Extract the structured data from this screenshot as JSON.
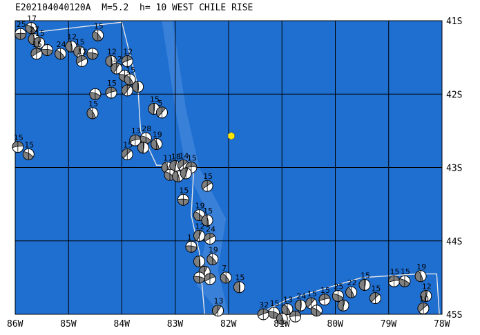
{
  "title": "E202104040120A  M=5.2  h= 10 WEST CHILE RISE",
  "map": {
    "ocean_color": "#1f6fd1",
    "ridge_color": "#4f8ee0",
    "grid_color": "#000000",
    "boundary_color": "#e6e6e6",
    "epicenter_color": "#ffe800",
    "lon_range": [
      -86,
      -78
    ],
    "lat_range": [
      -45,
      -41
    ],
    "lon_labels": [
      "86W",
      "85W",
      "84W",
      "83W",
      "82W",
      "81W",
      "80W",
      "79W",
      "78W"
    ],
    "lat_labels": [
      "41S",
      "42S",
      "43S",
      "44S",
      "45S"
    ],
    "epicenter": {
      "lon": -81.95,
      "lat": -42.57
    },
    "mechanisms": [
      {
        "lon": -85.9,
        "lat": -41.18,
        "label": "25"
      },
      {
        "lon": -85.7,
        "lat": -41.1,
        "label": "17"
      },
      {
        "lon": -85.65,
        "lat": -41.25,
        "label": "27"
      },
      {
        "lon": -85.55,
        "lat": -41.3,
        "label": "15"
      },
      {
        "lon": -85.6,
        "lat": -41.45,
        "label": "15"
      },
      {
        "lon": -85.4,
        "lat": -41.4,
        "label": ""
      },
      {
        "lon": -85.15,
        "lat": -41.45,
        "label": "24"
      },
      {
        "lon": -84.95,
        "lat": -41.35,
        "label": "12"
      },
      {
        "lon": -84.8,
        "lat": -41.42,
        "label": "15"
      },
      {
        "lon": -84.75,
        "lat": -41.55,
        "label": "12"
      },
      {
        "lon": -84.55,
        "lat": -41.45,
        "label": ""
      },
      {
        "lon": -84.45,
        "lat": -41.2,
        "label": "15"
      },
      {
        "lon": -84.2,
        "lat": -41.55,
        "label": "12"
      },
      {
        "lon": -84.1,
        "lat": -41.65,
        "label": "12"
      },
      {
        "lon": -83.9,
        "lat": -41.55,
        "label": "12"
      },
      {
        "lon": -83.95,
        "lat": -41.75,
        "label": ""
      },
      {
        "lon": -83.85,
        "lat": -41.8,
        "label": "15"
      },
      {
        "lon": -83.7,
        "lat": -41.9,
        "label": ""
      },
      {
        "lon": -83.9,
        "lat": -41.95,
        "label": ""
      },
      {
        "lon": -84.2,
        "lat": -41.98,
        "label": "15"
      },
      {
        "lon": -84.5,
        "lat": -42.0,
        "label": ""
      },
      {
        "lon": -84.55,
        "lat": -42.26,
        "label": "15"
      },
      {
        "lon": -83.4,
        "lat": -42.2,
        "label": "15"
      },
      {
        "lon": -83.25,
        "lat": -42.25,
        "label": "5"
      },
      {
        "lon": -83.75,
        "lat": -42.63,
        "label": "13"
      },
      {
        "lon": -83.55,
        "lat": -42.6,
        "label": "28"
      },
      {
        "lon": -83.35,
        "lat": -42.68,
        "label": "19"
      },
      {
        "lon": -83.6,
        "lat": -42.73,
        "label": ""
      },
      {
        "lon": -83.9,
        "lat": -42.82,
        "label": "15"
      },
      {
        "lon": -85.95,
        "lat": -42.72,
        "label": "15"
      },
      {
        "lon": -85.75,
        "lat": -42.82,
        "label": "15"
      },
      {
        "lon": -83.15,
        "lat": -43.0,
        "label": "11"
      },
      {
        "lon": -83.0,
        "lat": -42.98,
        "label": "18"
      },
      {
        "lon": -82.85,
        "lat": -42.97,
        "label": "14"
      },
      {
        "lon": -82.7,
        "lat": -43.0,
        "label": "15"
      },
      {
        "lon": -83.1,
        "lat": -43.1,
        "label": ""
      },
      {
        "lon": -82.95,
        "lat": -43.12,
        "label": ""
      },
      {
        "lon": -82.8,
        "lat": -43.08,
        "label": ""
      },
      {
        "lon": -82.4,
        "lat": -43.25,
        "label": "15"
      },
      {
        "lon": -82.85,
        "lat": -43.44,
        "label": "15"
      },
      {
        "lon": -82.55,
        "lat": -43.65,
        "label": "19"
      },
      {
        "lon": -82.4,
        "lat": -43.72,
        "label": "15"
      },
      {
        "lon": -82.55,
        "lat": -43.93,
        "label": "12"
      },
      {
        "lon": -82.35,
        "lat": -43.97,
        "label": "24"
      },
      {
        "lon": -82.7,
        "lat": -44.08,
        "label": "1"
      },
      {
        "lon": -82.3,
        "lat": -44.25,
        "label": "19"
      },
      {
        "lon": -82.55,
        "lat": -44.28,
        "label": ""
      },
      {
        "lon": -82.45,
        "lat": -44.42,
        "label": ""
      },
      {
        "lon": -82.35,
        "lat": -44.52,
        "label": ""
      },
      {
        "lon": -82.55,
        "lat": -44.5,
        "label": ""
      },
      {
        "lon": -82.05,
        "lat": -44.5,
        "label": "7"
      },
      {
        "lon": -81.8,
        "lat": -44.63,
        "label": "15"
      },
      {
        "lon": -82.2,
        "lat": -44.95,
        "label": "13"
      },
      {
        "lon": -81.35,
        "lat": -45.0,
        "label": "32"
      },
      {
        "lon": -81.15,
        "lat": -44.98,
        "label": "15"
      },
      {
        "lon": -80.9,
        "lat": -44.93,
        "label": "13"
      },
      {
        "lon": -80.65,
        "lat": -44.88,
        "label": "24"
      },
      {
        "lon": -80.45,
        "lat": -44.85,
        "label": "15"
      },
      {
        "lon": -80.2,
        "lat": -44.8,
        "label": "15"
      },
      {
        "lon": -79.95,
        "lat": -44.75,
        "label": "25"
      },
      {
        "lon": -79.7,
        "lat": -44.7,
        "label": "22"
      },
      {
        "lon": -79.45,
        "lat": -44.6,
        "label": "15"
      },
      {
        "lon": -79.25,
        "lat": -44.78,
        "label": "15"
      },
      {
        "lon": -78.9,
        "lat": -44.55,
        "label": "15"
      },
      {
        "lon": -78.7,
        "lat": -44.55,
        "label": "15"
      },
      {
        "lon": -78.4,
        "lat": -44.48,
        "label": "19"
      },
      {
        "lon": -78.3,
        "lat": -44.75,
        "label": "12"
      },
      {
        "lon": -78.35,
        "lat": -44.92,
        "label": "10"
      },
      {
        "lon": -80.75,
        "lat": -45.03,
        "label": ""
      },
      {
        "lon": -80.35,
        "lat": -44.95,
        "label": ""
      },
      {
        "lon": -81.0,
        "lat": -45.06,
        "label": ""
      },
      {
        "lon": -79.85,
        "lat": -44.88,
        "label": ""
      }
    ]
  }
}
